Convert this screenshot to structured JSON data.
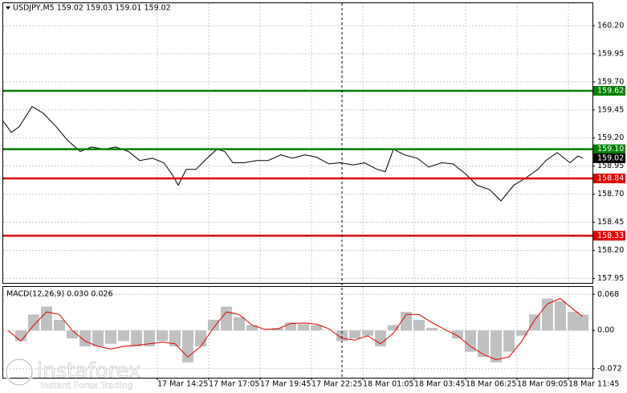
{
  "chart_data": [
    {
      "type": "line",
      "title": "USDJPY,M5  159.02 159.03 159.01 159.02",
      "color": "#000000",
      "x": [
        0,
        5,
        10,
        18,
        25,
        33,
        40,
        48,
        55,
        63,
        70,
        78,
        85,
        93,
        100,
        105,
        109,
        114,
        120,
        127,
        133,
        138,
        143,
        150,
        158,
        165,
        173,
        180,
        188,
        195,
        203,
        210,
        218,
        225,
        233,
        238,
        243,
        250,
        258,
        265,
        273,
        280,
        288,
        295,
        303,
        310,
        318,
        325,
        333,
        338,
        345,
        353,
        358,
        361
      ],
      "values": [
        159.35,
        159.25,
        159.3,
        159.48,
        159.42,
        159.3,
        159.18,
        159.08,
        159.12,
        159.1,
        159.12,
        159.08,
        159.0,
        159.02,
        158.98,
        158.88,
        158.78,
        158.92,
        158.92,
        159.02,
        159.1,
        159.08,
        158.98,
        158.98,
        159.0,
        159.0,
        159.05,
        159.02,
        159.05,
        159.03,
        158.97,
        158.98,
        158.96,
        158.98,
        158.92,
        158.9,
        159.1,
        159.05,
        159.02,
        158.94,
        158.98,
        158.97,
        158.88,
        158.78,
        158.74,
        158.64,
        158.78,
        158.84,
        158.92,
        159.0,
        159.07,
        158.98,
        159.04,
        159.02
      ],
      "xlim": [
        0,
        367
      ],
      "ylim": [
        157.91,
        160.4
      ],
      "yticks": [
        {
          "value": 160.2,
          "label": "160.20"
        },
        159.95,
        {
          "value": 159.7,
          "label": "159.70"
        },
        159.45,
        {
          "value": 159.2,
          "label": "159.20"
        },
        158.95,
        {
          "value": 158.7,
          "label": "158.70"
        },
        158.45,
        {
          "value": 158.2,
          "label": "158.20"
        },
        157.95
      ],
      "levels": [
        {
          "value": 159.62,
          "color": "#008000"
        },
        {
          "value": 159.1,
          "label": "159.10",
          "color": "#008000"
        },
        {
          "value": 158.84,
          "color": "#e00000"
        },
        {
          "value": 158.33,
          "color": "#e00000"
        }
      ],
      "last_price": 159.02,
      "grid": true
    },
    {
      "type": "bar",
      "title": "MACD(12,26,9) 0.030 0.026",
      "x": [
        3,
        11,
        19,
        27,
        35,
        43,
        51,
        59,
        67,
        75,
        83,
        91,
        99,
        107,
        115,
        123,
        131,
        139,
        147,
        155,
        163,
        171,
        179,
        187,
        195,
        203,
        211,
        219,
        227,
        235,
        243,
        251,
        259,
        267,
        275,
        283,
        291,
        299,
        307,
        315,
        323,
        331,
        339,
        347,
        355,
        361
      ],
      "histogram": {
        "color": "#c0c0c0",
        "values": [
          0.0,
          -0.02,
          0.03,
          0.045,
          0.02,
          -0.015,
          -0.03,
          -0.03,
          -0.025,
          -0.02,
          -0.03,
          -0.03,
          -0.02,
          -0.03,
          -0.06,
          -0.03,
          0.02,
          0.045,
          0.025,
          0.01,
          0.0,
          0.005,
          0.015,
          0.012,
          0.01,
          0.0,
          -0.02,
          -0.015,
          -0.01,
          -0.03,
          0.01,
          0.035,
          0.02,
          0.005,
          0.0,
          -0.015,
          -0.04,
          -0.05,
          -0.06,
          -0.04,
          -0.01,
          0.03,
          0.06,
          0.055,
          0.035,
          0.03
        ]
      },
      "signal": {
        "color": "#e00000",
        "values": [
          0.0,
          -0.02,
          0.01,
          0.035,
          0.03,
          0.0,
          -0.02,
          -0.03,
          -0.035,
          -0.03,
          -0.028,
          -0.025,
          -0.022,
          -0.025,
          -0.05,
          -0.03,
          0.005,
          0.035,
          0.03,
          0.01,
          0.002,
          0.003,
          0.013,
          0.014,
          0.012,
          0.003,
          -0.015,
          -0.018,
          -0.01,
          -0.025,
          -0.005,
          0.03,
          0.03,
          0.015,
          0.002,
          -0.01,
          -0.03,
          -0.045,
          -0.055,
          -0.05,
          -0.02,
          0.02,
          0.05,
          0.06,
          0.04,
          0.026
        ]
      },
      "xlim": [
        0,
        367
      ],
      "ylim": [
        -0.089,
        0.082
      ],
      "yticks": [
        0.068,
        {
          "value": 0,
          "label": "0.00"
        },
        -0.072
      ],
      "xticks": [
        {
          "value": 96,
          "label": "17 Mar 14:25"
        },
        {
          "value": 128,
          "label": "17 Mar 17:05"
        },
        {
          "value": 160,
          "label": "17 Mar 19:45"
        },
        {
          "value": 192,
          "label": "17 Mar 22:25"
        },
        {
          "value": 224,
          "label": "18 Mar 01:05"
        },
        {
          "value": 256,
          "label": "18 Mar 03:45"
        },
        {
          "value": 288,
          "label": "18 Mar 06:25"
        },
        {
          "value": 320,
          "label": "18 Mar 09:05"
        },
        {
          "value": 352,
          "label": "18 Mar 11:45"
        }
      ],
      "grid": true
    }
  ],
  "watermark": {
    "brand": "instaforex",
    "tagline": "Instant Forex Trading"
  }
}
